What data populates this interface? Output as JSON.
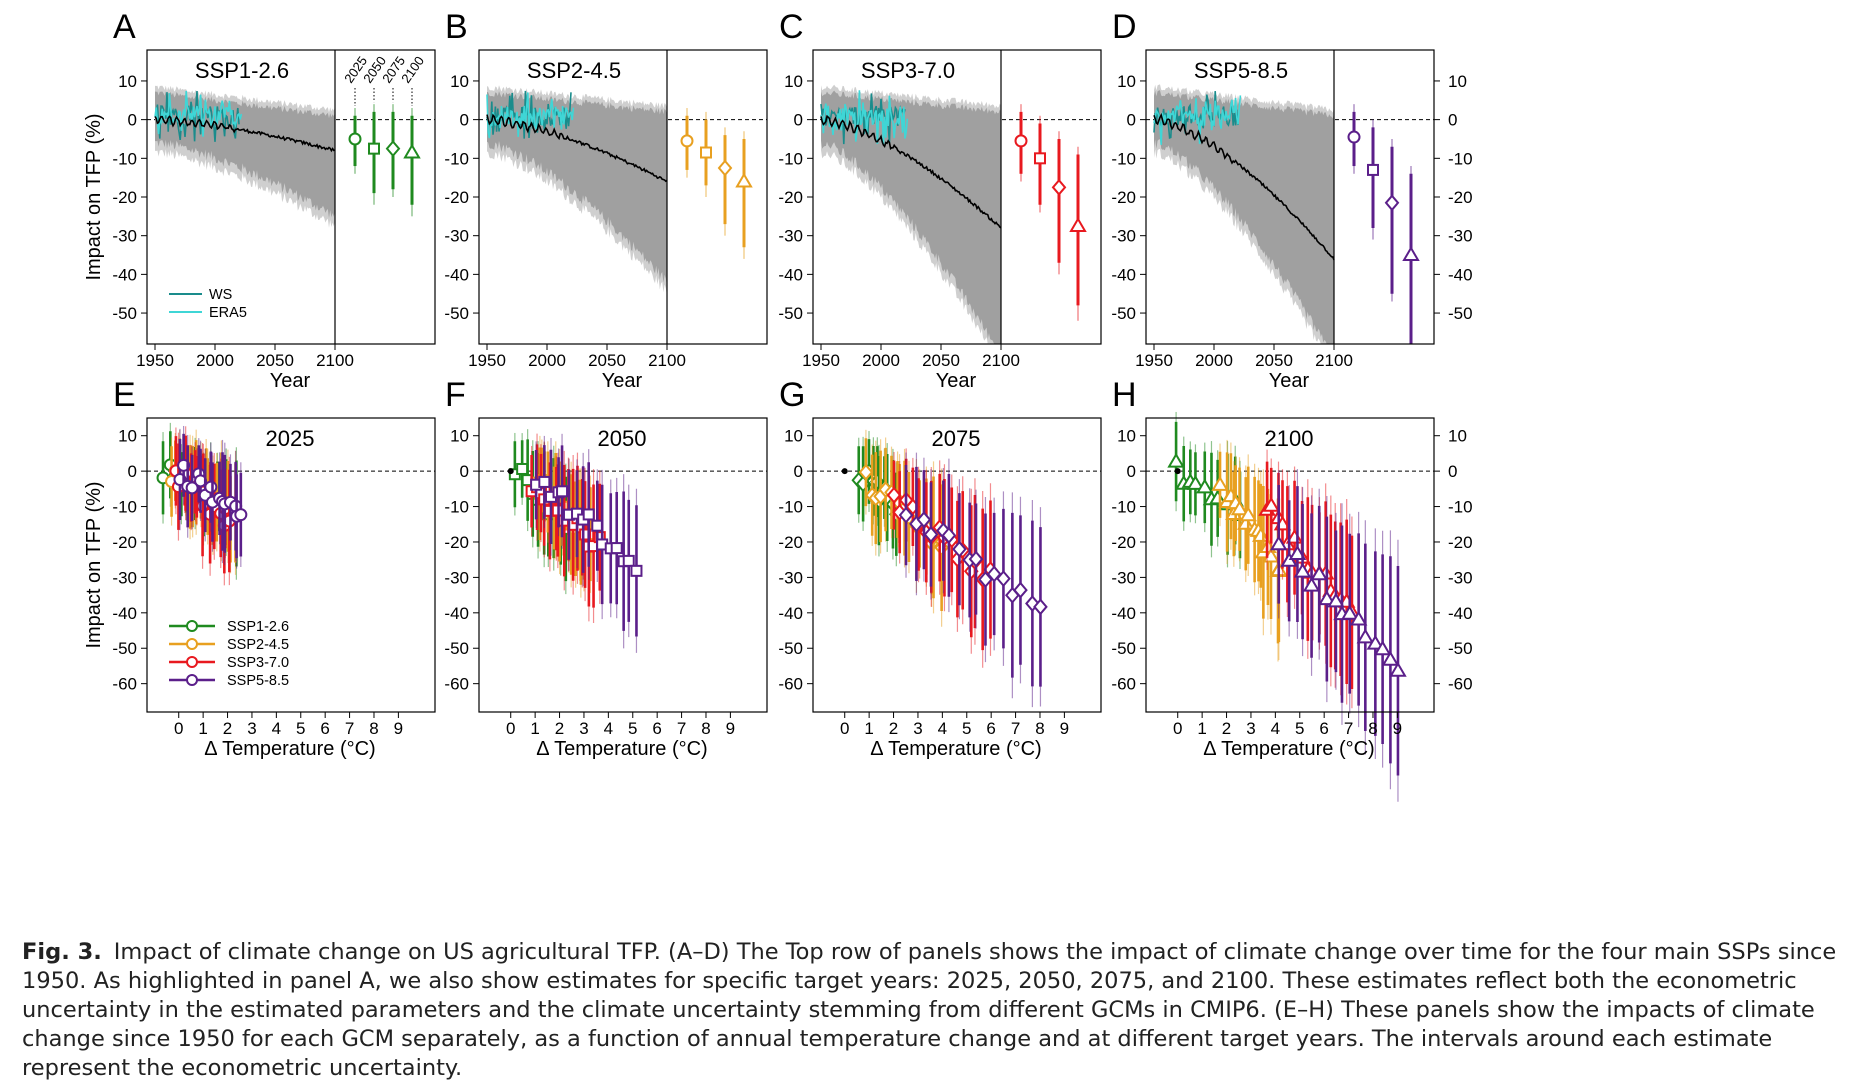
{
  "figure": {
    "caption": {
      "label": "Fig. 3.",
      "text": "Impact of climate change on US agricultural TFP. (A–D) The Top row of panels shows the impact of climate change over time for the four main SSPs since 1950. As highlighted in panel A, we also show estimates for specific target years: 2025, 2050, 2075, and 2100. These estimates reflect both the econometric uncertainty in the estimated parameters and the climate uncertainty stemming from different GCMs in CMIP6. (E–H) These panels show the impacts of climate change since 1950 for each GCM separately, as a function of annual temperature change and at different target years. The intervals around each estimate represent the econometric uncertainty."
    },
    "colors": {
      "SSP1-2.6": "#1f8a1f",
      "SSP2-4.5": "#e8a020",
      "SSP3-7.0": "#e8191f",
      "SSP5-8.5": "#5b1f8a",
      "WS": "#1a8c8c",
      "ERA5": "#3fd6d6",
      "band_outer": "#cfcfcf",
      "band_inner": "#a0a0a0"
    },
    "y_axis_label": "Impact on TFP (%)"
  },
  "chart_data": [
    {
      "type": "line",
      "panel": "A",
      "title": "SSP1-2.6",
      "xlabel": "Year",
      "ylabel": "Impact on TFP (%)",
      "xlim": [
        1945,
        2100
      ],
      "ylim": [
        -58,
        18
      ],
      "x_ticks": [
        1950,
        2000,
        2050,
        2100
      ],
      "y_ticks": [
        10,
        0,
        -10,
        -20,
        -30,
        -40,
        -50
      ],
      "median_end": -8,
      "band_end": [
        -21,
        1
      ],
      "legend": [
        "WS",
        "ERA5"
      ],
      "target_labels": [
        "2025",
        "2050",
        "2075",
        "2100"
      ],
      "targets": [
        {
          "year": "2025",
          "marker": "circle",
          "value": -5,
          "inner": [
            -12,
            1
          ],
          "outer": [
            -14,
            3
          ]
        },
        {
          "year": "2050",
          "marker": "square",
          "value": -7.5,
          "inner": [
            -19,
            2
          ],
          "outer": [
            -22,
            4
          ]
        },
        {
          "year": "2075",
          "marker": "diamond",
          "value": -7.5,
          "inner": [
            -18,
            2
          ],
          "outer": [
            -20,
            4
          ]
        },
        {
          "year": "2100",
          "marker": "triangle",
          "value": -8.5,
          "inner": [
            -22,
            1
          ],
          "outer": [
            -25,
            3
          ]
        }
      ]
    },
    {
      "type": "line",
      "panel": "B",
      "title": "SSP2-4.5",
      "xlabel": "Year",
      "xlim": [
        1945,
        2100
      ],
      "ylim": [
        -58,
        18
      ],
      "x_ticks": [
        1950,
        2000,
        2050,
        2100
      ],
      "y_ticks": [
        10,
        0,
        -10,
        -20,
        -30,
        -40,
        -50
      ],
      "median_end": -16,
      "band_end": [
        -38,
        2
      ],
      "targets": [
        {
          "year": "2025",
          "marker": "circle",
          "value": -5.5,
          "inner": [
            -13,
            1
          ],
          "outer": [
            -15,
            3
          ]
        },
        {
          "year": "2050",
          "marker": "square",
          "value": -8.5,
          "inner": [
            -17,
            0
          ],
          "outer": [
            -20,
            2
          ]
        },
        {
          "year": "2075",
          "marker": "diamond",
          "value": -12.5,
          "inner": [
            -27,
            -4
          ],
          "outer": [
            -30,
            -2
          ]
        },
        {
          "year": "2100",
          "marker": "triangle",
          "value": -16,
          "inner": [
            -33,
            -5
          ],
          "outer": [
            -36,
            -3
          ]
        }
      ]
    },
    {
      "type": "line",
      "panel": "C",
      "title": "SSP3-7.0",
      "xlabel": "Year",
      "xlim": [
        1945,
        2100
      ],
      "ylim": [
        -58,
        18
      ],
      "x_ticks": [
        1950,
        2000,
        2050,
        2100
      ],
      "y_ticks": [
        10,
        0,
        -10,
        -20,
        -30,
        -40,
        -50
      ],
      "median_end": -28,
      "band_end": [
        -57,
        2
      ],
      "targets": [
        {
          "year": "2025",
          "marker": "circle",
          "value": -5.5,
          "inner": [
            -14,
            2
          ],
          "outer": [
            -16,
            4
          ]
        },
        {
          "year": "2050",
          "marker": "square",
          "value": -10,
          "inner": [
            -22,
            -1
          ],
          "outer": [
            -24,
            1
          ]
        },
        {
          "year": "2075",
          "marker": "diamond",
          "value": -17.5,
          "inner": [
            -37,
            -5
          ],
          "outer": [
            -40,
            -3
          ]
        },
        {
          "year": "2100",
          "marker": "triangle",
          "value": -27.5,
          "inner": [
            -48,
            -9
          ],
          "outer": [
            -52,
            -7
          ]
        }
      ]
    },
    {
      "type": "line",
      "panel": "D",
      "title": "SSP5-8.5",
      "xlabel": "Year",
      "xlim": [
        1945,
        2100
      ],
      "ylim": [
        -58,
        18
      ],
      "x_ticks": [
        1950,
        2000,
        2050,
        2100
      ],
      "y_ticks": [
        10,
        0,
        -10,
        -20,
        -30,
        -40,
        -50
      ],
      "median_end": -36,
      "band_end": [
        -58,
        1
      ],
      "targets": [
        {
          "year": "2025",
          "marker": "circle",
          "value": -4.5,
          "inner": [
            -12,
            2
          ],
          "outer": [
            -14,
            4
          ]
        },
        {
          "year": "2050",
          "marker": "square",
          "value": -13,
          "inner": [
            -28,
            -2
          ],
          "outer": [
            -31,
            0
          ]
        },
        {
          "year": "2075",
          "marker": "diamond",
          "value": -21.5,
          "inner": [
            -45,
            -7
          ],
          "outer": [
            -47,
            -5
          ]
        },
        {
          "year": "2100",
          "marker": "triangle",
          "value": -35,
          "inner": [
            -58,
            -14
          ],
          "outer": [
            -58,
            -12
          ]
        }
      ]
    },
    {
      "type": "scatter",
      "panel": "E",
      "title": "2025",
      "xlabel": "Δ Temperature (°C)",
      "xlim": [
        -1.3,
        10.5
      ],
      "ylim": [
        -68,
        15
      ],
      "x_ticks": [
        0,
        1,
        2,
        3,
        4,
        5,
        6,
        7,
        8,
        9
      ],
      "y_ticks": [
        10,
        0,
        -10,
        -20,
        -30,
        -40,
        -50,
        -60
      ],
      "legend": [
        "SSP1-2.6",
        "SSP2-4.5",
        "SSP3-7.0",
        "SSP5-8.5"
      ],
      "marker": "circle",
      "range": {
        "SSP1-2.6": {
          "t": [
            -0.6,
            2.3
          ],
          "y": [
            -12,
            0
          ]
        },
        "SSP2-4.5": {
          "t": [
            -0.3,
            2.3
          ],
          "y": [
            -12,
            0
          ]
        },
        "SSP3-7.0": {
          "t": [
            -0.1,
            2.1
          ],
          "y": [
            -14,
            -1
          ]
        },
        "SSP5-8.5": {
          "t": [
            0.1,
            2.6
          ],
          "y": [
            -13,
            0
          ]
        }
      }
    },
    {
      "type": "scatter",
      "panel": "F",
      "title": "2050",
      "xlabel": "Δ Temperature (°C)",
      "xlim": [
        -1.3,
        10.5
      ],
      "ylim": [
        -68,
        15
      ],
      "x_ticks": [
        0,
        1,
        2,
        3,
        4,
        5,
        6,
        7,
        8,
        9
      ],
      "y_ticks": [
        10,
        0,
        -10,
        -20,
        -30,
        -40,
        -50,
        -60
      ],
      "marker": "square",
      "range": {
        "SSP1-2.6": {
          "t": [
            0.2,
            2.2
          ],
          "y": [
            -14,
            0
          ]
        },
        "SSP2-4.5": {
          "t": [
            1.0,
            3.2
          ],
          "y": [
            -18,
            -3
          ]
        },
        "SSP3-7.0": {
          "t": [
            0.9,
            3.6
          ],
          "y": [
            -21,
            -4
          ]
        },
        "SSP5-8.5": {
          "t": [
            1.1,
            5.1
          ],
          "y": [
            -26,
            -2
          ]
        }
      }
    },
    {
      "type": "scatter",
      "panel": "G",
      "title": "2075",
      "xlabel": "Δ Temperature (°C)",
      "xlim": [
        -1.3,
        10.5
      ],
      "ylim": [
        -68,
        15
      ],
      "x_ticks": [
        0,
        1,
        2,
        3,
        4,
        5,
        6,
        7,
        8,
        9
      ],
      "y_ticks": [
        10,
        0,
        -10,
        -20,
        -30,
        -40,
        -50,
        -60
      ],
      "marker": "diamond",
      "range": {
        "SSP1-2.6": {
          "t": [
            0.6,
            2.1
          ],
          "y": [
            -10,
            0
          ]
        },
        "SSP2-4.5": {
          "t": [
            0.9,
            3.9
          ],
          "y": [
            -20,
            -3
          ]
        },
        "SSP3-7.0": {
          "t": [
            2.0,
            5.9
          ],
          "y": [
            -30,
            -8
          ]
        },
        "SSP5-8.5": {
          "t": [
            2.5,
            8.0
          ],
          "y": [
            -41,
            -10
          ]
        }
      }
    },
    {
      "type": "scatter",
      "panel": "H",
      "title": "2100",
      "xlabel": "Δ Temperature (°C)",
      "xlim": [
        -1.3,
        10.5
      ],
      "ylim": [
        -68,
        15
      ],
      "x_ticks": [
        0,
        1,
        2,
        3,
        4,
        5,
        6,
        7,
        8,
        9
      ],
      "y_ticks": [
        10,
        0,
        -10,
        -20,
        -30,
        -40,
        -50,
        -60
      ],
      "marker": "triangle",
      "range": {
        "SSP1-2.6": {
          "t": [
            -0.1,
            2.6
          ],
          "y": [
            -12,
            0
          ]
        },
        "SSP2-4.5": {
          "t": [
            1.8,
            4.2
          ],
          "y": [
            -27,
            -5
          ]
        },
        "SSP3-7.0": {
          "t": [
            3.6,
            7.2
          ],
          "y": [
            -42,
            -10
          ]
        },
        "SSP5-8.5": {
          "t": [
            4.2,
            9.0
          ],
          "y": [
            -56,
            -20
          ]
        }
      }
    }
  ]
}
